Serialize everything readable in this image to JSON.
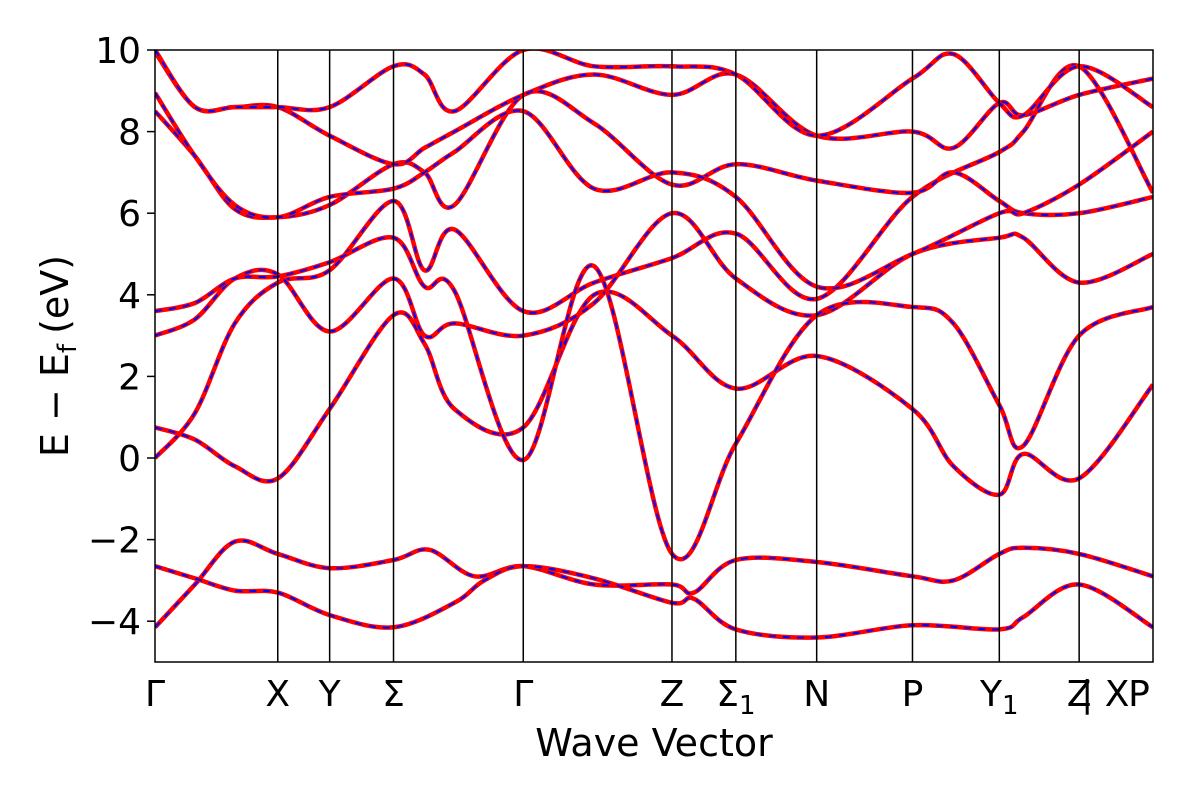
{
  "chart_data": {
    "type": "line",
    "title": "",
    "xlabel": "Wave Vector",
    "ylabel": "E − E_f (eV)",
    "ylabel_parts": {
      "main": "E − E",
      "sub": "f",
      "unit": "(eV)"
    },
    "ylim": [
      -5,
      10
    ],
    "yticks": [
      -4,
      -2,
      0,
      2,
      4,
      6,
      8,
      10
    ],
    "grid": false,
    "legend": "none",
    "line_styles": [
      {
        "name": "",
        "color": "#ff0000",
        "style": "solid"
      },
      {
        "name": "",
        "color": "#0000ff",
        "style": "dashed"
      }
    ],
    "kpoints": [
      {
        "label": "Γ",
        "sub": "",
        "pos": 0.0
      },
      {
        "label": "X",
        "sub": "",
        "pos": 1.23
      },
      {
        "label": "Y",
        "sub": "",
        "pos": 1.75
      },
      {
        "label": "Σ",
        "sub": "",
        "pos": 2.39
      },
      {
        "label": "Γ",
        "sub": "",
        "pos": 3.69
      },
      {
        "label": "Z",
        "sub": "",
        "pos": 5.18
      },
      {
        "label": "Σ",
        "sub": "1",
        "pos": 5.82
      },
      {
        "label": "N",
        "sub": "",
        "pos": 6.63
      },
      {
        "label": "P",
        "sub": "",
        "pos": 7.59
      },
      {
        "label": "Y",
        "sub": "1",
        "pos": 8.46
      },
      {
        "label": "Z",
        "sub": "",
        "pos": 9.26
      },
      {
        "label": "| X",
        "sub": "",
        "pos": 9.26
      },
      {
        "label": "P",
        "sub": "",
        "pos": 10.0
      }
    ],
    "bands": [
      {
        "name": "",
        "points": [
          [
            0,
            -4.15
          ],
          [
            0.4,
            -3.1
          ],
          [
            0.8,
            -2.05
          ],
          [
            1.23,
            -2.35
          ],
          [
            1.75,
            -2.7
          ],
          [
            2.39,
            -2.5
          ],
          [
            2.75,
            -2.25
          ],
          [
            3.2,
            -2.9
          ],
          [
            3.69,
            -2.65
          ],
          [
            4.4,
            -3.1
          ],
          [
            5.18,
            -3.1
          ],
          [
            5.4,
            -3.3
          ],
          [
            5.82,
            -2.5
          ],
          [
            6.63,
            -2.55
          ],
          [
            7.59,
            -2.9
          ],
          [
            8.0,
            -3.0
          ],
          [
            8.46,
            -2.35
          ],
          [
            8.7,
            -2.2
          ],
          [
            9.26,
            -2.35
          ],
          [
            10.0,
            -2.9
          ]
        ]
      },
      {
        "name": "",
        "points": [
          [
            0,
            -2.65
          ],
          [
            0.4,
            -2.95
          ],
          [
            0.8,
            -3.25
          ],
          [
            1.23,
            -3.3
          ],
          [
            1.75,
            -3.85
          ],
          [
            2.39,
            -4.15
          ],
          [
            3.0,
            -3.55
          ],
          [
            3.3,
            -3.0
          ],
          [
            3.69,
            -2.65
          ],
          [
            4.4,
            -2.95
          ],
          [
            5.18,
            -3.55
          ],
          [
            5.4,
            -3.45
          ],
          [
            5.82,
            -4.2
          ],
          [
            6.63,
            -4.4
          ],
          [
            7.59,
            -4.1
          ],
          [
            8.46,
            -4.2
          ],
          [
            8.7,
            -3.9
          ],
          [
            9.26,
            -3.1
          ],
          [
            10.0,
            -4.15
          ]
        ]
      },
      {
        "name": "",
        "points": [
          [
            0,
            0.0
          ],
          [
            0.4,
            1.1
          ],
          [
            0.8,
            3.3
          ],
          [
            1.23,
            4.3
          ],
          [
            1.75,
            4.6
          ],
          [
            2.39,
            6.3
          ],
          [
            2.7,
            4.6
          ],
          [
            3.0,
            5.6
          ],
          [
            3.69,
            3.6
          ],
          [
            4.4,
            4.3
          ],
          [
            5.18,
            4.9
          ],
          [
            5.82,
            5.5
          ],
          [
            6.63,
            3.9
          ],
          [
            7.59,
            6.4
          ],
          [
            8.46,
            7.5
          ],
          [
            8.7,
            8.0
          ],
          [
            9.26,
            9.6
          ],
          [
            10.0,
            6.5
          ]
        ]
      },
      {
        "name": "",
        "points": [
          [
            0,
            0.75
          ],
          [
            0.4,
            0.45
          ],
          [
            0.8,
            -0.2
          ],
          [
            1.23,
            -0.5
          ],
          [
            1.75,
            1.2
          ],
          [
            2.39,
            3.5
          ],
          [
            2.7,
            2.8
          ],
          [
            3.0,
            1.2
          ],
          [
            3.69,
            0.75
          ],
          [
            4.4,
            4.0
          ],
          [
            5.18,
            3.0
          ],
          [
            5.82,
            1.7
          ],
          [
            6.63,
            2.5
          ],
          [
            7.59,
            1.2
          ],
          [
            8.0,
            -0.2
          ],
          [
            8.46,
            -0.9
          ],
          [
            8.7,
            0.1
          ],
          [
            9.26,
            -0.5
          ],
          [
            10.0,
            1.8
          ]
        ]
      },
      {
        "name": "",
        "points": [
          [
            0,
            3.0
          ],
          [
            0.4,
            3.4
          ],
          [
            0.8,
            4.4
          ],
          [
            1.23,
            4.5
          ],
          [
            1.75,
            3.1
          ],
          [
            2.39,
            4.4
          ],
          [
            2.7,
            3.0
          ],
          [
            3.0,
            3.3
          ],
          [
            3.69,
            3.0
          ],
          [
            4.4,
            3.8
          ],
          [
            5.18,
            6.0
          ],
          [
            5.82,
            4.4
          ],
          [
            6.63,
            3.5
          ],
          [
            7.59,
            5.0
          ],
          [
            8.46,
            5.4
          ],
          [
            8.7,
            5.4
          ],
          [
            9.26,
            4.3
          ],
          [
            10.0,
            5.0
          ]
        ]
      },
      {
        "name": "",
        "points": [
          [
            0,
            3.6
          ],
          [
            0.4,
            3.8
          ],
          [
            0.8,
            4.4
          ],
          [
            1.23,
            4.45
          ],
          [
            1.75,
            4.8
          ],
          [
            2.39,
            5.4
          ],
          [
            2.7,
            4.2
          ],
          [
            3.0,
            4.1
          ],
          [
            3.69,
            -0.05
          ],
          [
            4.4,
            4.7
          ],
          [
            5.18,
            -2.35
          ],
          [
            5.82,
            0.35
          ],
          [
            6.63,
            3.5
          ],
          [
            7.59,
            3.7
          ],
          [
            8.0,
            3.3
          ],
          [
            8.46,
            1.3
          ],
          [
            8.7,
            0.3
          ],
          [
            9.26,
            3.0
          ],
          [
            10.0,
            3.7
          ]
        ]
      },
      {
        "name": "",
        "points": [
          [
            0,
            8.5
          ],
          [
            0.4,
            7.4
          ],
          [
            0.8,
            6.1
          ],
          [
            1.23,
            5.9
          ],
          [
            1.75,
            6.2
          ],
          [
            2.39,
            7.2
          ],
          [
            2.7,
            7.0
          ],
          [
            3.0,
            6.2
          ],
          [
            3.69,
            8.9
          ],
          [
            4.4,
            8.2
          ],
          [
            5.18,
            6.7
          ],
          [
            5.82,
            7.2
          ],
          [
            6.63,
            6.8
          ],
          [
            7.59,
            6.5
          ],
          [
            8.0,
            7.0
          ],
          [
            8.46,
            6.3
          ],
          [
            8.7,
            6.0
          ],
          [
            9.26,
            6.0
          ],
          [
            10.0,
            6.4
          ]
        ]
      },
      {
        "name": "",
        "points": [
          [
            0,
            8.95
          ],
          [
            0.4,
            7.4
          ],
          [
            0.8,
            6.2
          ],
          [
            1.23,
            5.9
          ],
          [
            1.75,
            6.4
          ],
          [
            2.39,
            6.6
          ],
          [
            2.7,
            7.0
          ],
          [
            3.0,
            7.5
          ],
          [
            3.69,
            8.5
          ],
          [
            4.4,
            6.6
          ],
          [
            5.18,
            7.0
          ],
          [
            5.82,
            6.4
          ],
          [
            6.63,
            4.2
          ],
          [
            7.59,
            5.0
          ],
          [
            8.46,
            6.0
          ],
          [
            8.7,
            6.0
          ],
          [
            9.26,
            6.7
          ],
          [
            10.0,
            8.0
          ]
        ]
      },
      {
        "name": "",
        "points": [
          [
            0,
            9.95
          ],
          [
            0.4,
            8.6
          ],
          [
            0.8,
            8.6
          ],
          [
            1.23,
            8.6
          ],
          [
            1.75,
            7.9
          ],
          [
            2.39,
            7.2
          ],
          [
            2.7,
            7.6
          ],
          [
            3.0,
            8.0
          ],
          [
            3.69,
            8.9
          ],
          [
            4.4,
            9.4
          ],
          [
            5.18,
            8.9
          ],
          [
            5.82,
            9.4
          ],
          [
            6.63,
            7.9
          ],
          [
            7.59,
            8.0
          ],
          [
            8.0,
            7.6
          ],
          [
            8.46,
            8.7
          ],
          [
            8.7,
            8.4
          ],
          [
            9.26,
            8.9
          ],
          [
            10.0,
            9.3
          ]
        ]
      },
      {
        "name": "",
        "points": [
          [
            0,
            10.0
          ],
          [
            0.4,
            8.6
          ],
          [
            0.8,
            8.6
          ],
          [
            1.23,
            8.6
          ],
          [
            1.75,
            8.6
          ],
          [
            2.39,
            9.6
          ],
          [
            2.7,
            9.4
          ],
          [
            3.0,
            8.5
          ],
          [
            3.69,
            10.0
          ],
          [
            4.4,
            9.6
          ],
          [
            5.18,
            9.6
          ],
          [
            5.82,
            9.4
          ],
          [
            6.63,
            7.9
          ],
          [
            7.59,
            9.3
          ],
          [
            8.0,
            9.9
          ],
          [
            8.46,
            8.7
          ],
          [
            8.7,
            8.4
          ],
          [
            9.26,
            9.6
          ],
          [
            10.0,
            8.6
          ]
        ]
      }
    ]
  }
}
